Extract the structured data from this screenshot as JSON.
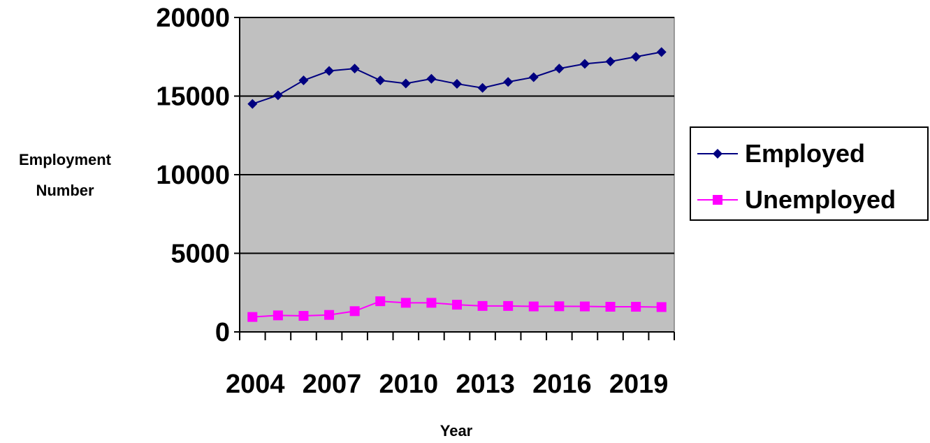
{
  "chart_data": {
    "type": "line",
    "title": "",
    "xlabel": "Year",
    "ylabel": [
      "Employment",
      "Number"
    ],
    "x": [
      2004,
      2005,
      2006,
      2007,
      2008,
      2009,
      2010,
      2011,
      2012,
      2013,
      2014,
      2015,
      2016,
      2017,
      2018,
      2019,
      2020
    ],
    "x_tick_labels": [
      "2004",
      "2007",
      "2010",
      "2013",
      "2016",
      "2019"
    ],
    "x_tick_label_years": [
      2004,
      2007,
      2010,
      2013,
      2016,
      2019
    ],
    "y_ticks": [
      0,
      5000,
      10000,
      15000,
      20000
    ],
    "ylim": [
      0,
      20000
    ],
    "grid": "horizontal",
    "legend_position": "right",
    "plot_background": "#c0c0c0",
    "series": [
      {
        "name": "Employed",
        "color": "#000080",
        "marker": "diamond",
        "values": [
          14500,
          15050,
          16000,
          16600,
          16750,
          16000,
          15800,
          16100,
          15780,
          15520,
          15900,
          16200,
          16750,
          17050,
          17200,
          17500,
          17800
        ]
      },
      {
        "name": "Unemployed",
        "color": "#ff00ff",
        "marker": "square",
        "values": [
          950,
          1050,
          1020,
          1080,
          1320,
          1950,
          1850,
          1850,
          1730,
          1650,
          1650,
          1620,
          1630,
          1620,
          1600,
          1600,
          1580
        ]
      }
    ]
  }
}
